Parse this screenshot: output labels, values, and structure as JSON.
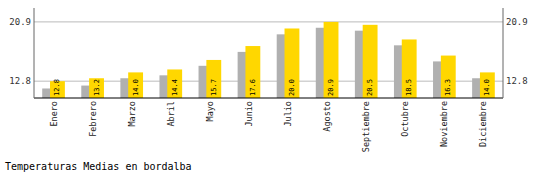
{
  "chart_data": {
    "type": "bar",
    "title": "Temperaturas Medias en bordalba",
    "categories": [
      "Enero",
      "Febrero",
      "Marzo",
      "Abril",
      "Mayo",
      "Junio",
      "Julio",
      "Agosto",
      "Septiembre",
      "Octubre",
      "Noviembre",
      "Diciembre"
    ],
    "series": [
      {
        "color": "#B0B0B0",
        "values": [
          11.8,
          12.2,
          13.2,
          13.6,
          14.9,
          16.8,
          19.2,
          20.1,
          19.7,
          17.7,
          15.5,
          13.2
        ]
      },
      {
        "color": "#FFD700",
        "values": [
          12.8,
          13.2,
          14.0,
          14.4,
          15.7,
          17.6,
          20.0,
          20.9,
          20.5,
          18.5,
          16.3,
          14.0
        ],
        "value_labels": [
          "12.8",
          "13.2",
          "14.0",
          "14.4",
          "15.7",
          "17.6",
          "20.0",
          "20.9",
          "20.5",
          "18.5",
          "16.3",
          "14.0"
        ],
        "data_labels": true
      }
    ],
    "ylim": [
      10.5,
      22.8
    ],
    "yticks": [
      12.8,
      20.9
    ],
    "grid": true
  }
}
